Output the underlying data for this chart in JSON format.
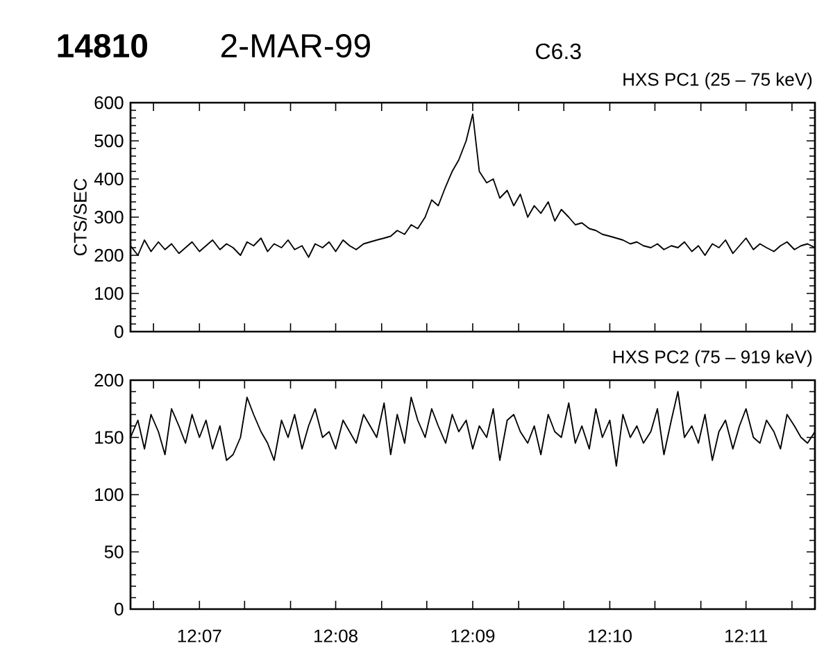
{
  "chart_data": [
    {
      "type": "line",
      "title": "HXS PC1 (25 – 75 keV)",
      "ylabel": "CTS/SEC",
      "annotations": [
        "14810",
        "2-MAR-99",
        "C6.3"
      ],
      "color": "#000000",
      "tick_labels": "y",
      "x": [
        12.1083,
        12.1092,
        12.11,
        12.1108,
        12.1117,
        12.1125,
        12.1133,
        12.1142,
        12.115,
        12.1158,
        12.1167,
        12.1175,
        12.1183,
        12.1192,
        12.12,
        12.1208,
        12.1217,
        12.1225,
        12.1233,
        12.1242,
        12.125,
        12.1258,
        12.1267,
        12.1275,
        12.1283,
        12.1292,
        12.13,
        12.1308,
        12.1317,
        12.1325,
        12.1333,
        12.1342,
        12.135,
        12.1358,
        12.1367,
        12.1375,
        12.1383,
        12.1392,
        12.14,
        12.1408,
        12.1417,
        12.1425,
        12.1433,
        12.1442,
        12.145,
        12.1458,
        12.1467,
        12.1475,
        12.1483,
        12.1492,
        12.15,
        12.1508,
        12.1517,
        12.1525,
        12.1533,
        12.1542,
        12.155,
        12.1558,
        12.1567,
        12.1575,
        12.1583,
        12.1592,
        12.16,
        12.1608,
        12.1617,
        12.1625,
        12.1633,
        12.1642,
        12.165,
        12.1658,
        12.1667,
        12.1675,
        12.1683,
        12.1692,
        12.17,
        12.1708,
        12.1717,
        12.1725,
        12.1733,
        12.1742,
        12.175,
        12.1758,
        12.1767,
        12.1775,
        12.1783,
        12.1792,
        12.18,
        12.1808,
        12.1817,
        12.1825,
        12.1833,
        12.1842,
        12.185,
        12.1858,
        12.1867,
        12.1875,
        12.1883,
        12.1892,
        12.19,
        12.1908,
        12.1917
      ],
      "values": [
        225,
        200,
        240,
        210,
        235,
        215,
        230,
        205,
        220,
        235,
        210,
        225,
        240,
        215,
        230,
        220,
        200,
        235,
        225,
        245,
        210,
        230,
        220,
        240,
        215,
        225,
        195,
        230,
        220,
        235,
        210,
        240,
        225,
        215,
        230,
        235,
        240,
        245,
        250,
        265,
        255,
        280,
        270,
        300,
        345,
        330,
        380,
        420,
        450,
        500,
        570,
        420,
        390,
        400,
        350,
        370,
        330,
        360,
        300,
        330,
        310,
        340,
        290,
        320,
        300,
        280,
        285,
        270,
        265,
        255,
        250,
        245,
        240,
        230,
        235,
        225,
        220,
        230,
        215,
        225,
        220,
        235,
        210,
        225,
        200,
        230,
        220,
        240,
        205,
        225,
        245,
        215,
        230,
        220,
        210,
        225,
        235,
        215,
        225,
        230,
        220
      ],
      "xlim": [
        12.1083,
        12.1917
      ],
      "ylim": [
        0,
        600
      ],
      "yticks": [
        0,
        100,
        200,
        300,
        400,
        500,
        600
      ],
      "xticks": [
        {
          "value": 12.1111,
          "label": null
        },
        {
          "value": 12.1167,
          "label": null
        },
        {
          "value": 12.1222,
          "label": null
        },
        {
          "value": 12.1278,
          "label": null
        },
        {
          "value": 12.1333,
          "label": null
        },
        {
          "value": 12.1389,
          "label": null
        },
        {
          "value": 12.1444,
          "label": null
        },
        {
          "value": 12.15,
          "label": null
        },
        {
          "value": 12.1556,
          "label": null
        },
        {
          "value": 12.1611,
          "label": null
        },
        {
          "value": 12.1667,
          "label": null
        },
        {
          "value": 12.1722,
          "label": null
        },
        {
          "value": 12.1778,
          "label": null
        },
        {
          "value": 12.1833,
          "label": null
        },
        {
          "value": 12.1889,
          "label": null
        }
      ]
    },
    {
      "type": "line",
      "title": "HXS PC2 (75 – 919 keV)",
      "color": "#000000",
      "x": [
        12.1083,
        12.1092,
        12.11,
        12.1108,
        12.1117,
        12.1125,
        12.1133,
        12.1142,
        12.115,
        12.1158,
        12.1167,
        12.1175,
        12.1183,
        12.1192,
        12.12,
        12.1208,
        12.1217,
        12.1225,
        12.1233,
        12.1242,
        12.125,
        12.1258,
        12.1267,
        12.1275,
        12.1283,
        12.1292,
        12.13,
        12.1308,
        12.1317,
        12.1325,
        12.1333,
        12.1342,
        12.135,
        12.1358,
        12.1367,
        12.1375,
        12.1383,
        12.1392,
        12.14,
        12.1408,
        12.1417,
        12.1425,
        12.1433,
        12.1442,
        12.145,
        12.1458,
        12.1467,
        12.1475,
        12.1483,
        12.1492,
        12.15,
        12.1508,
        12.1517,
        12.1525,
        12.1533,
        12.1542,
        12.155,
        12.1558,
        12.1567,
        12.1575,
        12.1583,
        12.1592,
        12.16,
        12.1608,
        12.1617,
        12.1625,
        12.1633,
        12.1642,
        12.165,
        12.1658,
        12.1667,
        12.1675,
        12.1683,
        12.1692,
        12.17,
        12.1708,
        12.1717,
        12.1725,
        12.1733,
        12.1742,
        12.175,
        12.1758,
        12.1767,
        12.1775,
        12.1783,
        12.1792,
        12.18,
        12.1808,
        12.1817,
        12.1825,
        12.1833,
        12.1842,
        12.185,
        12.1858,
        12.1867,
        12.1875,
        12.1883,
        12.1892,
        12.19,
        12.1908,
        12.1917
      ],
      "values": [
        150,
        165,
        140,
        170,
        155,
        135,
        175,
        160,
        145,
        170,
        150,
        165,
        140,
        160,
        130,
        135,
        150,
        185,
        170,
        155,
        145,
        130,
        165,
        150,
        170,
        140,
        160,
        175,
        150,
        155,
        140,
        165,
        155,
        145,
        170,
        160,
        150,
        180,
        135,
        170,
        145,
        185,
        165,
        150,
        175,
        160,
        145,
        170,
        155,
        165,
        140,
        160,
        150,
        175,
        130,
        165,
        170,
        155,
        145,
        160,
        135,
        170,
        155,
        150,
        180,
        145,
        160,
        140,
        175,
        150,
        165,
        125,
        170,
        150,
        160,
        145,
        155,
        175,
        135,
        165,
        190,
        150,
        160,
        145,
        170,
        130,
        155,
        165,
        140,
        160,
        175,
        150,
        145,
        165,
        155,
        140,
        170,
        160,
        150,
        145,
        155
      ],
      "xlim": [
        12.1083,
        12.1917
      ],
      "ylim": [
        0,
        200
      ],
      "yticks": [
        0,
        50,
        100,
        150,
        200
      ],
      "xticks": [
        {
          "value": 12.1111,
          "label": null
        },
        {
          "value": 12.1167,
          "label": "12:07"
        },
        {
          "value": 12.1222,
          "label": null
        },
        {
          "value": 12.1278,
          "label": null
        },
        {
          "value": 12.1333,
          "label": "12:08"
        },
        {
          "value": 12.1389,
          "label": null
        },
        {
          "value": 12.1444,
          "label": null
        },
        {
          "value": 12.15,
          "label": "12:09"
        },
        {
          "value": 12.1556,
          "label": null
        },
        {
          "value": 12.1611,
          "label": null
        },
        {
          "value": 12.1667,
          "label": "12:10"
        },
        {
          "value": 12.1722,
          "label": null
        },
        {
          "value": 12.1778,
          "label": null
        },
        {
          "value": 12.1833,
          "label": "12:11"
        },
        {
          "value": 12.1889,
          "label": null
        }
      ]
    }
  ]
}
